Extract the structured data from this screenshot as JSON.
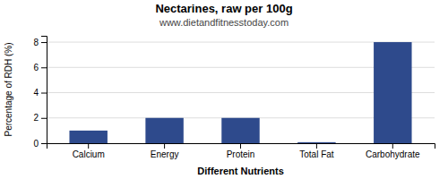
{
  "chart_data": {
    "type": "bar",
    "title": "Nectarines, raw per 100g",
    "subtitle": "www.dietandfitnesstoday.com",
    "xlabel": "Different Nutrients",
    "ylabel": "Percentage of RDH (%)",
    "categories": [
      "Calcium",
      "Energy",
      "Protein",
      "Total Fat",
      "Carbohydrate"
    ],
    "values": [
      1.0,
      2.0,
      2.0,
      0.08,
      8.0
    ],
    "color": "#2e4a8c",
    "ylim": [
      0,
      8.5
    ],
    "yticks": [
      0,
      2,
      4,
      6,
      8
    ],
    "grid": true
  }
}
